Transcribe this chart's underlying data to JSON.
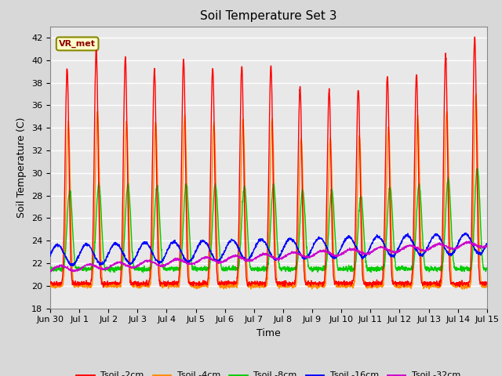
{
  "title": "Soil Temperature Set 3",
  "xlabel": "Time",
  "ylabel": "Soil Temperature (C)",
  "ylim": [
    18,
    43
  ],
  "yticks": [
    18,
    20,
    22,
    24,
    26,
    28,
    30,
    32,
    34,
    36,
    38,
    40,
    42
  ],
  "line_colors": {
    "2cm": "#ff0000",
    "4cm": "#ff8c00",
    "8cm": "#00cc00",
    "16cm": "#0000ff",
    "32cm": "#cc00cc"
  },
  "legend_labels": [
    "Tsoil -2cm",
    "Tsoil -4cm",
    "Tsoil -8cm",
    "Tsoil -16cm",
    "Tsoil -32cm"
  ],
  "annotation_text": "VR_met",
  "bg_color": "#e8e8e8",
  "fig_color": "#d8d8d8",
  "grid_color": "#ffffff",
  "title_fontsize": 11,
  "axis_fontsize": 9,
  "tick_fontsize": 8
}
